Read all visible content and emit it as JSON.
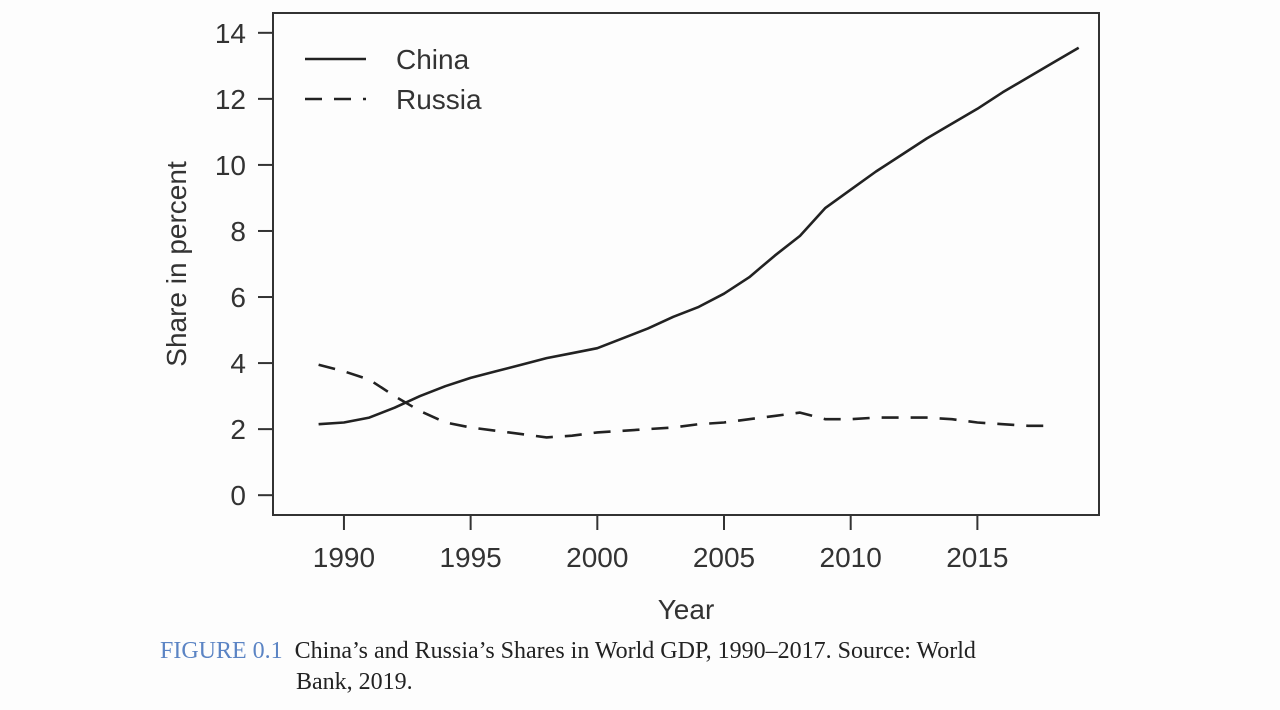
{
  "chart_data": {
    "type": "line",
    "title": "",
    "xlabel": "Year",
    "ylabel": "Share in percent",
    "xlim": [
      1987.2,
      2019.8
    ],
    "ylim": [
      -0.6,
      14.6
    ],
    "x_ticks": [
      1990,
      1995,
      2000,
      2005,
      2010,
      2015
    ],
    "y_ticks": [
      0,
      2,
      4,
      6,
      8,
      10,
      12,
      14
    ],
    "grid": false,
    "legend_position": "top-left",
    "series": [
      {
        "name": "China",
        "style": "solid",
        "color": "#222222",
        "x": [
          1989,
          1990,
          1991,
          1992,
          1993,
          1994,
          1995,
          1996,
          1997,
          1998,
          1999,
          2000,
          2001,
          2002,
          2003,
          2004,
          2005,
          2006,
          2007,
          2008,
          2009,
          2010,
          2011,
          2012,
          2013,
          2014,
          2015,
          2016,
          2017,
          2018,
          2019
        ],
        "values": [
          2.15,
          2.2,
          2.35,
          2.65,
          3.0,
          3.3,
          3.55,
          3.75,
          3.95,
          4.15,
          4.3,
          4.45,
          4.75,
          5.05,
          5.4,
          5.7,
          6.1,
          6.6,
          7.25,
          7.85,
          8.7,
          9.25,
          9.8,
          10.3,
          10.8,
          11.25,
          11.7,
          12.2,
          12.65,
          13.1,
          13.55
        ]
      },
      {
        "name": "Russia",
        "style": "dashed",
        "color": "#222222",
        "x": [
          1989,
          1990,
          1991,
          1992,
          1993,
          1994,
          1995,
          1996,
          1997,
          1998,
          1999,
          2000,
          2001,
          2002,
          2003,
          2004,
          2005,
          2006,
          2007,
          2008,
          2009,
          2010,
          2011,
          2012,
          2013,
          2014,
          2015,
          2016,
          2017,
          2018
        ],
        "values": [
          3.95,
          3.75,
          3.5,
          3.0,
          2.55,
          2.2,
          2.05,
          1.95,
          1.85,
          1.75,
          1.8,
          1.9,
          1.95,
          2.0,
          2.05,
          2.15,
          2.2,
          2.3,
          2.4,
          2.5,
          2.3,
          2.3,
          2.35,
          2.35,
          2.35,
          2.3,
          2.2,
          2.15,
          2.1,
          2.1
        ]
      }
    ]
  },
  "caption": {
    "figure_label": "FIGURE 0.1",
    "line1": "China’s and Russia’s Shares in World GDP, 1990–2017. Source: World",
    "line2": "Bank, 2019."
  },
  "colors": {
    "figure_label": "#5b84c4",
    "line": "#222222",
    "axis": "#333333"
  }
}
